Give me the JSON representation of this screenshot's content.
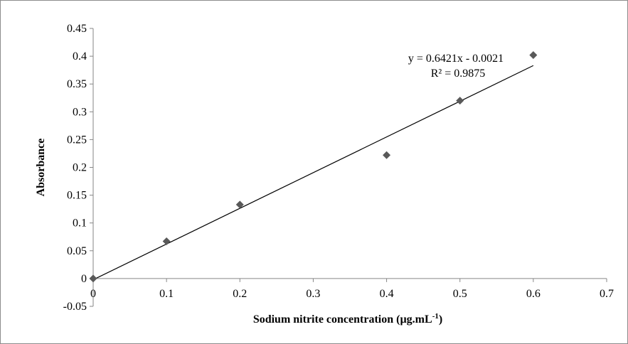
{
  "chart_data": {
    "type": "scatter",
    "title": "",
    "xlabel": "Sodium nitrite concentration (µg.mL",
    "xlabel_sup": "-1",
    "xlabel_suffix": ")",
    "ylabel": "Absorbance",
    "xlim": [
      0,
      0.7
    ],
    "ylim": [
      -0.05,
      0.45
    ],
    "x_ticks": [
      0,
      0.1,
      0.2,
      0.3,
      0.4,
      0.5,
      0.6,
      0.7
    ],
    "y_ticks": [
      -0.05,
      0,
      0.05,
      0.1,
      0.15,
      0.2,
      0.25,
      0.3,
      0.35,
      0.4,
      0.45
    ],
    "x_tick_labels": [
      "0",
      "0.1",
      "0.2",
      "0.3",
      "0.4",
      "0.5",
      "0.6",
      "0.7"
    ],
    "y_tick_labels": [
      "-0.05",
      "0",
      "0.05",
      "0.1",
      "0.15",
      "0.2",
      "0.25",
      "0.3",
      "0.35",
      "0.4",
      "0.45"
    ],
    "grid": false,
    "legend": "none",
    "marker": "diamond",
    "marker_color": "#595959",
    "line_color": "#000000",
    "series": [
      {
        "x": [
          0,
          0.1,
          0.2,
          0.4,
          0.5,
          0.6
        ],
        "y": [
          0,
          0.067,
          0.133,
          0.222,
          0.32,
          0.402
        ]
      }
    ],
    "trendline": {
      "slope": 0.6421,
      "intercept": -0.0021,
      "x_range": [
        0,
        0.6
      ],
      "equation": "y = 0.6421x - 0.0021",
      "r2": "R² = 0.9875"
    }
  }
}
